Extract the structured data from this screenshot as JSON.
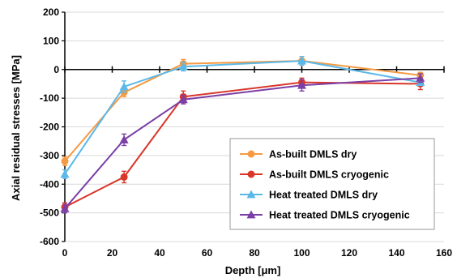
{
  "chart_data": {
    "type": "line",
    "xlabel": "Depth [μm]",
    "ylabel": "Axial residual stresses [MPa]",
    "xlim": [
      0,
      160
    ],
    "ylim": [
      -600,
      200
    ],
    "x_ticks": [
      "0",
      "20",
      "40",
      "60",
      "80",
      "100",
      "120",
      "140",
      "160"
    ],
    "y_ticks": [
      "200",
      "100",
      "0",
      "-100",
      "-200",
      "-300",
      "-400",
      "-500",
      "-600"
    ],
    "grid": "horizontal",
    "legend_position": "bottom-right",
    "series": [
      {
        "name": "As-built DMLS dry",
        "color": "#F59A42",
        "marker": "circle",
        "x": [
          0,
          25,
          50,
          100,
          150
        ],
        "y": [
          -320,
          -80,
          20,
          30,
          -20
        ],
        "err": [
          15,
          15,
          15,
          15,
          10
        ]
      },
      {
        "name": "As-built DMLS  cryogenic",
        "color": "#D9372A",
        "marker": "circle",
        "x": [
          0,
          25,
          50,
          100,
          150
        ],
        "y": [
          -480,
          -375,
          -95,
          -45,
          -50
        ],
        "err": [
          15,
          20,
          20,
          15,
          20
        ]
      },
      {
        "name": "Heat treated DMLS dry",
        "color": "#5BB8E8",
        "marker": "triangle",
        "x": [
          0,
          25,
          50,
          100,
          150
        ],
        "y": [
          -365,
          -60,
          10,
          30,
          -45
        ],
        "err": [
          15,
          20,
          15,
          15,
          10
        ]
      },
      {
        "name": "Heat treated DMLS cryogenic",
        "color": "#7B3FA6",
        "marker": "triangle",
        "x": [
          0,
          25,
          50,
          100,
          150
        ],
        "y": [
          -485,
          -245,
          -105,
          -55,
          -30
        ],
        "err": [
          15,
          20,
          15,
          20,
          15
        ]
      }
    ]
  }
}
